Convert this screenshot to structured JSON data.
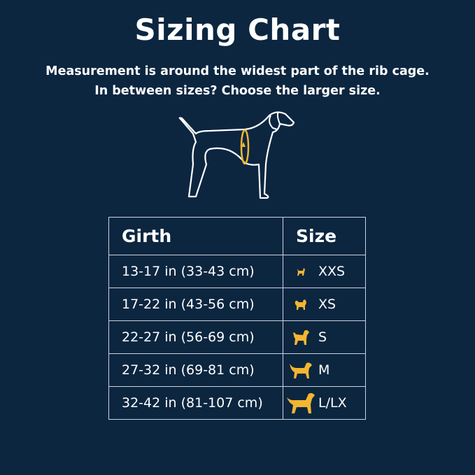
{
  "title": "Sizing Chart",
  "subtitle_line1": "Measurement is around the widest part of the rib cage.",
  "subtitle_line2": "In between sizes? Choose the larger size.",
  "colors": {
    "background": "#0c2640",
    "accent": "#f2b631",
    "text": "#ffffff",
    "grid": "#c9d3de"
  },
  "table": {
    "headers": {
      "girth": "Girth",
      "size": "Size"
    },
    "rows": [
      {
        "girth": "13-17 in (33-43 cm)",
        "size": "XXS",
        "icon": "tiny-dog-icon"
      },
      {
        "girth": "17-22 in (43-56 cm)",
        "size": "XS",
        "icon": "small-fluffy-dog-icon"
      },
      {
        "girth": "22-27 in (56-69 cm)",
        "size": "S",
        "icon": "small-dog-icon"
      },
      {
        "girth": "27-32 in (69-81 cm)",
        "size": "M",
        "icon": "medium-dog-icon"
      },
      {
        "girth": "32-42 in (81-107 cm)",
        "size": "L/LX",
        "icon": "large-dog-icon"
      }
    ]
  }
}
